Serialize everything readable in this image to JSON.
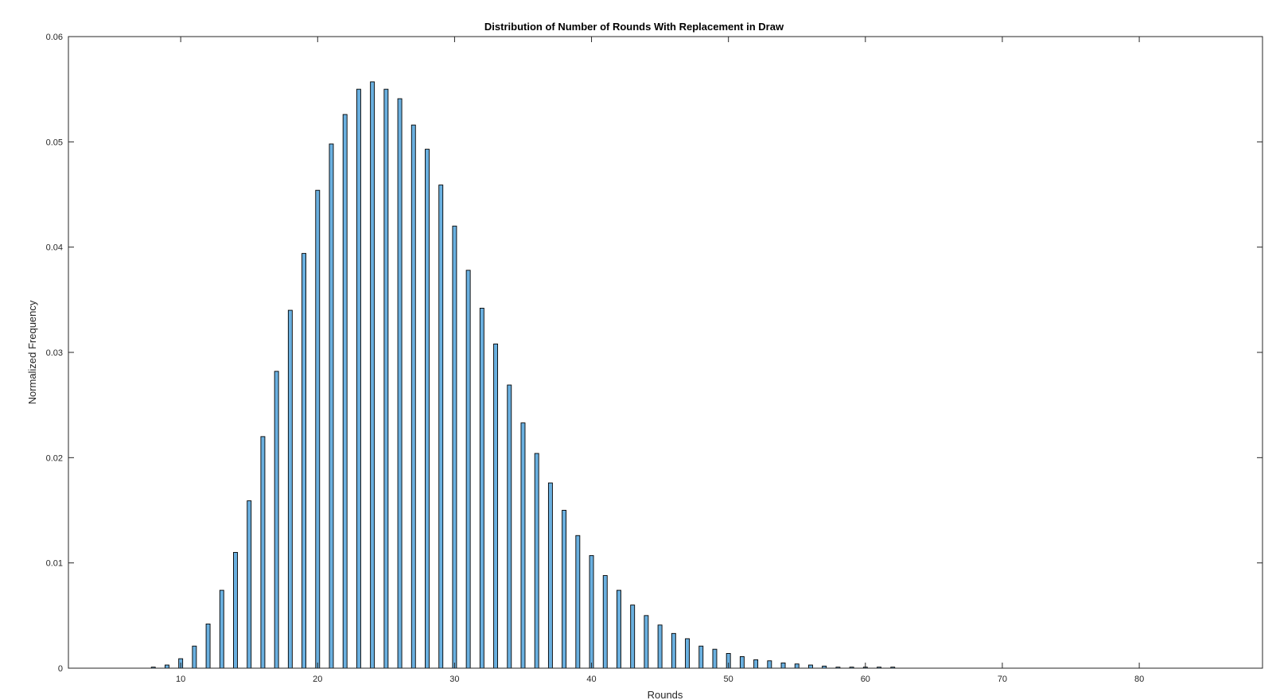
{
  "chart_data": {
    "type": "bar",
    "title": "Distribution of Number of Rounds With Replacement in Draw",
    "xlabel": "Rounds",
    "ylabel": "Normalized Frequency",
    "xlim": [
      1.8,
      89.0
    ],
    "ylim": [
      0,
      0.06
    ],
    "xticks": [
      10,
      20,
      30,
      40,
      50,
      60,
      70,
      80
    ],
    "yticks": [
      0,
      0.01,
      0.02,
      0.03,
      0.04,
      0.05,
      0.06
    ],
    "ytick_labels": [
      "0",
      "0.01",
      "0.02",
      "0.03",
      "0.04",
      "0.05",
      "0.06"
    ],
    "bar_color": "#6ab0e0",
    "grid": false,
    "legend": "none",
    "x": [
      8,
      9,
      10,
      11,
      12,
      13,
      14,
      15,
      16,
      17,
      18,
      19,
      20,
      21,
      22,
      23,
      24,
      25,
      26,
      27,
      28,
      29,
      30,
      31,
      32,
      33,
      34,
      35,
      36,
      37,
      38,
      39,
      40,
      41,
      42,
      43,
      44,
      45,
      46,
      47,
      48,
      49,
      50,
      51,
      52,
      53,
      54,
      55,
      56,
      57,
      58,
      59,
      60,
      61,
      62
    ],
    "values": [
      0.0001,
      0.0003,
      0.0009,
      0.0021,
      0.0042,
      0.0074,
      0.011,
      0.0159,
      0.022,
      0.0282,
      0.034,
      0.0394,
      0.0454,
      0.0498,
      0.0526,
      0.055,
      0.0557,
      0.055,
      0.0541,
      0.0516,
      0.0493,
      0.0459,
      0.042,
      0.0378,
      0.0342,
      0.0308,
      0.0269,
      0.0233,
      0.0204,
      0.0176,
      0.015,
      0.0126,
      0.0107,
      0.0088,
      0.0074,
      0.006,
      0.005,
      0.0041,
      0.0033,
      0.0028,
      0.0021,
      0.0018,
      0.0014,
      0.0011,
      0.0008,
      0.0007,
      0.0005,
      0.0004,
      0.0003,
      0.0002,
      0.0001,
      0.0001,
      0.0001,
      0.0001,
      0.0001
    ]
  }
}
